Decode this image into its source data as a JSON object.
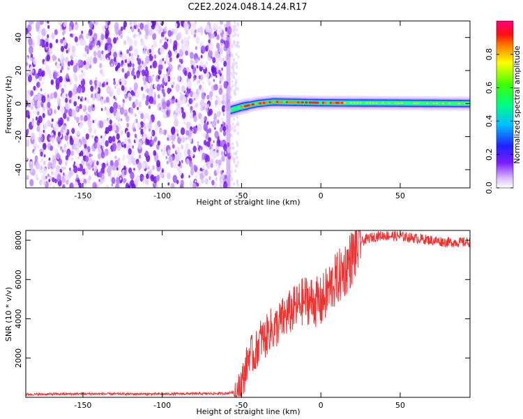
{
  "title": "C2E2.2024.048.14.24.R17",
  "chart_data": [
    {
      "type": "heatmap",
      "xlabel": "Height of straight line (km)",
      "ylabel": "Frequency (Hz)",
      "xlim": [
        -186,
        94
      ],
      "ylim": [
        -51,
        50
      ],
      "xticks": [
        -150,
        -100,
        -50,
        0,
        50
      ],
      "yticks": [
        -40,
        -20,
        0,
        20,
        40
      ],
      "noise_region_x": [
        -186,
        -57
      ],
      "signal_band": {
        "x_start": -57,
        "x_end": 94,
        "center_hz": [
          {
            "x": -57,
            "y": -4
          },
          {
            "x": -50,
            "y": -2
          },
          {
            "x": -40,
            "y": 0
          },
          {
            "x": -30,
            "y": 1
          },
          {
            "x": 0,
            "y": 0.5
          },
          {
            "x": 94,
            "y": 0
          }
        ],
        "peak_amplitude_range_x": [
          -50,
          15
        ]
      },
      "colorbar": {
        "label": "Normalized spectral amplitude",
        "range": [
          0,
          1
        ],
        "ticks": [
          0.0,
          0.2,
          0.4,
          0.6,
          0.8
        ]
      },
      "grid": false
    },
    {
      "type": "line",
      "xlabel": "Height of straight line (km)",
      "ylabel": "SNR (10 * v/v)",
      "xlim": [
        -186,
        94
      ],
      "ylim": [
        0,
        8500
      ],
      "xticks": [
        -150,
        -100,
        -50,
        0,
        50
      ],
      "yticks": [
        2000,
        4000,
        6000,
        8000
      ],
      "series": [
        {
          "color": "#ee3333",
          "x": [
            -186,
            -150,
            -100,
            -60,
            -52,
            -48,
            -45,
            -42,
            -38,
            -35,
            -32,
            -30,
            -25,
            -20,
            -15,
            -10,
            -5,
            0,
            5,
            10,
            15,
            20,
            25,
            30,
            35,
            40,
            50,
            60,
            70,
            80,
            94
          ],
          "y": [
            150,
            180,
            170,
            200,
            300,
            1200,
            2300,
            2100,
            3000,
            3000,
            3500,
            3400,
            3900,
            4300,
            4600,
            5000,
            4900,
            4800,
            5500,
            6000,
            6500,
            7200,
            7900,
            8100,
            8200,
            8250,
            8200,
            8100,
            8000,
            7900,
            7900
          ]
        }
      ],
      "grid": false
    }
  ]
}
